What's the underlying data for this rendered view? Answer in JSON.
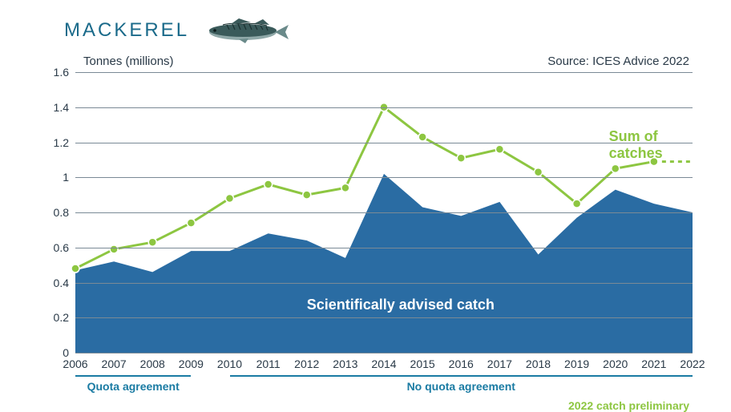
{
  "header": {
    "title": "MACKEREL"
  },
  "chart": {
    "type": "line+area",
    "ylabel": "Tonnes (millions)",
    "source_label": "Source: ICES Advice 2022",
    "background_color": "#ffffff",
    "grid_color": "#7a8a96",
    "text_color": "#2a3a48",
    "ylim": [
      0,
      1.6
    ],
    "ytick_step": 0.2,
    "yticks": [
      "0",
      "0.2",
      "0.4",
      "0.6",
      "0.8",
      "1",
      "1.2",
      "1.4",
      "1.6"
    ],
    "years": [
      "2006",
      "2007",
      "2008",
      "2009",
      "2010",
      "2011",
      "2012",
      "2013",
      "2014",
      "2015",
      "2016",
      "2017",
      "2018",
      "2019",
      "2020",
      "2021",
      "2022"
    ],
    "series": {
      "advised": {
        "label": "Scientifically advised catch",
        "label_color": "#ffffff",
        "fill_color": "#2a6ca3",
        "values": [
          0.47,
          0.52,
          0.46,
          0.58,
          0.58,
          0.68,
          0.64,
          0.54,
          1.02,
          0.83,
          0.78,
          0.86,
          0.56,
          0.77,
          0.93,
          0.85,
          0.8
        ]
      },
      "catches": {
        "label": "Sum of catches",
        "label_color": "#8dc641",
        "line_color": "#8dc641",
        "marker_fill": "#8dc641",
        "marker_stroke": "#ffffff",
        "line_width": 3,
        "marker_radius": 5,
        "values": [
          0.48,
          0.59,
          0.63,
          0.74,
          0.88,
          0.96,
          0.9,
          0.94,
          1.4,
          1.23,
          1.11,
          1.16,
          1.03,
          0.85,
          1.05,
          1.09
        ],
        "preliminary": {
          "from_index": 15,
          "to_index": 16,
          "value": 1.09
        }
      }
    },
    "periods": [
      {
        "label": "Quota agreement",
        "start_index": 0,
        "end_index": 3
      },
      {
        "label": "No quota agreement",
        "start_index": 4,
        "end_index": 16
      }
    ],
    "period_color": "#1a7ba3",
    "footnote": "2022 catch preliminary",
    "footnote_color": "#8dc641"
  }
}
